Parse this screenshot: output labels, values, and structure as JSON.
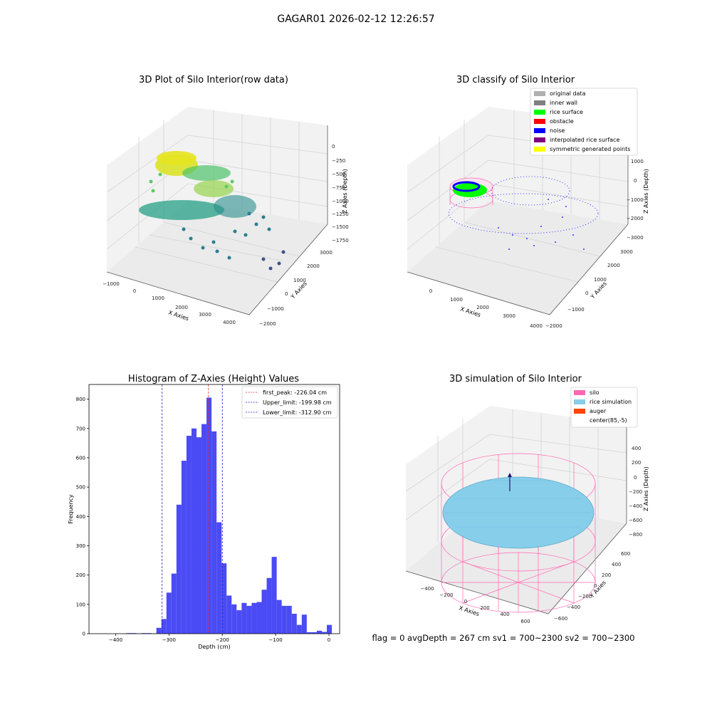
{
  "suptitle": "GAGAR01 2026-02-12 12:26:57",
  "footer": "flag = 0     avgDepth = 267 cm  sv1 = 700~2300  sv2 = 700~2300",
  "colors": {
    "hist_bar": "#4b4bf5",
    "first_peak": "#e03030",
    "limits": "#2020c8",
    "silo": "#ff69b4",
    "rice": "#87ceeb",
    "auger": "#ff4500",
    "noise": "#0000ff",
    "rice_surface": "#00ff00"
  },
  "panels": {
    "raw": {
      "title": "3D Plot of Silo Interior(row data)",
      "xlabel": "X Axies",
      "ylabel": "Y Axies",
      "zlabel": "Z Axies (Depth)",
      "xticks": [
        "−1000",
        "0",
        "1000",
        "2000",
        "3000",
        "4000"
      ],
      "yticks": [
        "−2000",
        "−1000",
        "0",
        "1000",
        "2000",
        "3000"
      ],
      "zticks": [
        "0",
        "−250",
        "−500",
        "−750",
        "−1000",
        "−1250",
        "−1500",
        "−1750"
      ]
    },
    "classify": {
      "title": "3D classify of Silo Interior",
      "xlabel": "X Axies",
      "ylabel": "Y Axies",
      "zlabel": "Z Axies (Depth)",
      "xticks": [
        "0",
        "1000",
        "2000",
        "3000",
        "4000"
      ],
      "yticks": [
        "−2000",
        "−1000",
        "0",
        "1000",
        "2000",
        "3000"
      ],
      "zticks": [
        "1000",
        "0",
        "−1000",
        "−2000",
        "−3000"
      ],
      "legend": [
        {
          "label": "original data",
          "color": "#b0b0b0"
        },
        {
          "label": "inner wall",
          "color": "#808080"
        },
        {
          "label": "rice surface",
          "color": "#00ff00"
        },
        {
          "label": "obstacle",
          "color": "#ff0000"
        },
        {
          "label": "noise",
          "color": "#0000ff"
        },
        {
          "label": "interpolated rice surface",
          "color": "#800080"
        },
        {
          "label": "symmetric generated points",
          "color": "#ffff00"
        }
      ]
    },
    "simulation": {
      "title": "3D simulation of Silo Interior",
      "xlabel": "X Axies",
      "ylabel": "Y Axies",
      "zlabel": "Z Axies (Depth)",
      "xticks": [
        "−400",
        "−200",
        "0",
        "200",
        "400",
        "600"
      ],
      "yticks": [
        "−600",
        "−400",
        "−200",
        "0",
        "200",
        "400",
        "600"
      ],
      "zticks": [
        "400",
        "200",
        "0",
        "−200",
        "−400",
        "−600",
        "−800"
      ],
      "legend": [
        {
          "label": "silo",
          "color": "#ff69b4"
        },
        {
          "label": "rice simulation",
          "color": "#87ceeb"
        },
        {
          "label": "auger",
          "color": "#ff4500"
        },
        {
          "label": "center(85,-5)",
          "color": ""
        }
      ]
    }
  },
  "chart_data": {
    "type": "bar",
    "title": "Histogram of Z-Axies (Height) Values",
    "xlabel": "Depth (cm)",
    "ylabel": "Frequency",
    "xlim": [
      -450,
      20
    ],
    "ylim": [
      0,
      850
    ],
    "xticks": [
      -400,
      -300,
      -200,
      -100,
      0
    ],
    "yticks": [
      0,
      100,
      200,
      300,
      400,
      500,
      600,
      700,
      800
    ],
    "legend_position": "top-right",
    "bin_width": 9.4,
    "bins": [
      {
        "x0": -380.0,
        "value": 2
      },
      {
        "x0": -370.6,
        "value": 2
      },
      {
        "x0": -361.2,
        "value": 1
      },
      {
        "x0": -351.8,
        "value": 2
      },
      {
        "x0": -342.4,
        "value": 2
      },
      {
        "x0": -333.0,
        "value": 1
      },
      {
        "x0": -323.6,
        "value": 20
      },
      {
        "x0": -314.2,
        "value": 50
      },
      {
        "x0": -304.8,
        "value": 140
      },
      {
        "x0": -295.4,
        "value": 205
      },
      {
        "x0": -286.0,
        "value": 440
      },
      {
        "x0": -276.6,
        "value": 590
      },
      {
        "x0": -267.2,
        "value": 675
      },
      {
        "x0": -257.8,
        "value": 700
      },
      {
        "x0": -248.4,
        "value": 670
      },
      {
        "x0": -239.0,
        "value": 715
      },
      {
        "x0": -229.6,
        "value": 805
      },
      {
        "x0": -220.2,
        "value": 690
      },
      {
        "x0": -210.8,
        "value": 380
      },
      {
        "x0": -201.4,
        "value": 240
      },
      {
        "x0": -192.0,
        "value": 130
      },
      {
        "x0": -182.6,
        "value": 100
      },
      {
        "x0": -173.2,
        "value": 80
      },
      {
        "x0": -163.8,
        "value": 105
      },
      {
        "x0": -154.4,
        "value": 95
      },
      {
        "x0": -145.0,
        "value": 105
      },
      {
        "x0": -135.6,
        "value": 108
      },
      {
        "x0": -126.2,
        "value": 150
      },
      {
        "x0": -116.8,
        "value": 190
      },
      {
        "x0": -107.4,
        "value": 262
      },
      {
        "x0": -98.0,
        "value": 115
      },
      {
        "x0": -88.6,
        "value": 95
      },
      {
        "x0": -79.2,
        "value": 95
      },
      {
        "x0": -69.8,
        "value": 68
      },
      {
        "x0": -60.4,
        "value": 30
      },
      {
        "x0": -51.0,
        "value": 65
      },
      {
        "x0": -41.6,
        "value": 5
      },
      {
        "x0": -32.2,
        "value": 5
      },
      {
        "x0": -22.8,
        "value": 10
      },
      {
        "x0": -13.4,
        "value": 6
      },
      {
        "x0": -4.0,
        "value": 30
      }
    ],
    "lines": [
      {
        "name": "first_peak: -226.04 cm",
        "x": -226.04,
        "color": "#e03030"
      },
      {
        "name": "Upper_limit: -199.98 cm",
        "x": -199.98,
        "color": "#2020c8"
      },
      {
        "name": "Lower_limit: -312.90 cm",
        "x": -312.9,
        "color": "#2020c8"
      }
    ]
  }
}
